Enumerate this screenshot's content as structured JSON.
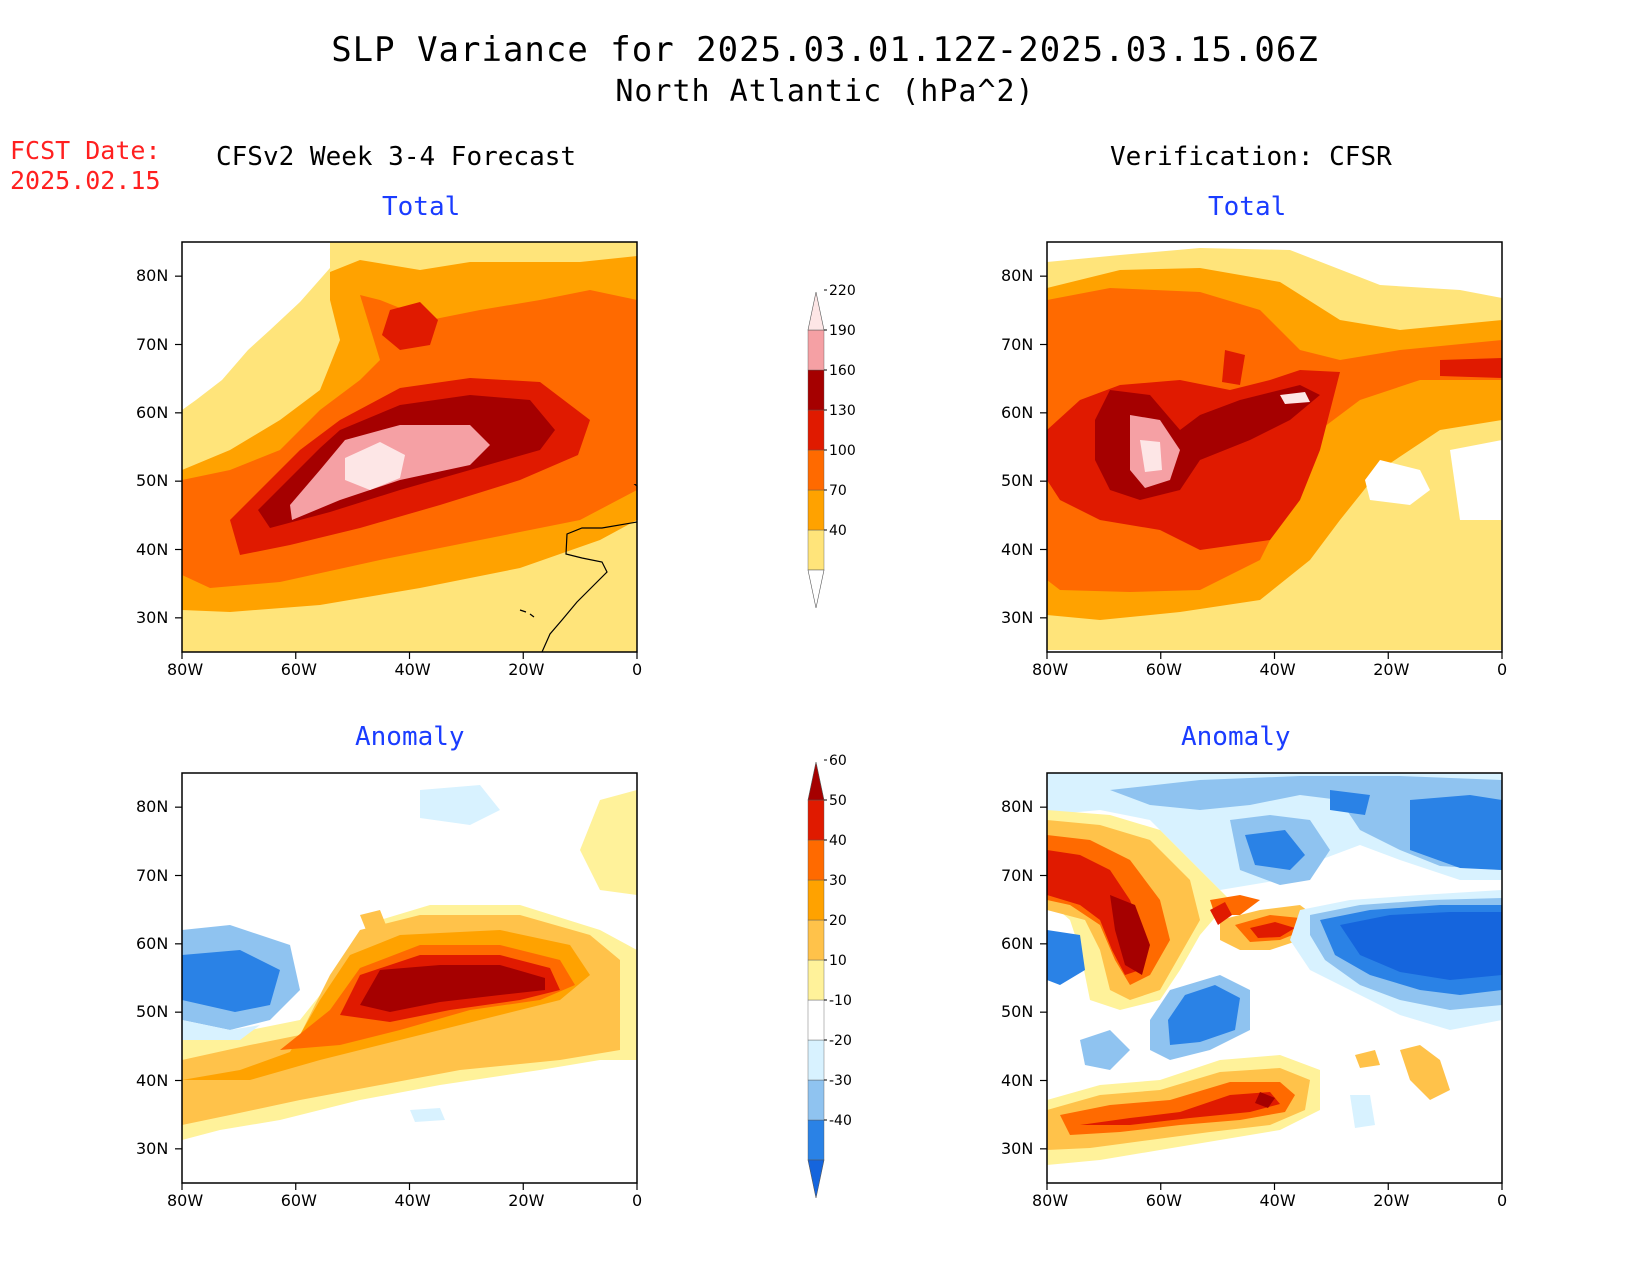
{
  "title": {
    "line1": "SLP Variance for 2025.03.01.12Z-2025.03.15.06Z",
    "line2": "North Atlantic (hPa^2)"
  },
  "forecast_date": {
    "label": "FCST Date:",
    "value": "2025.02.15"
  },
  "columns": {
    "left": "CFSv2 Week 3-4 Forecast",
    "right": "Verification: CFSR"
  },
  "panels": {
    "total": "Total",
    "anomaly": "Anomaly"
  },
  "axes": {
    "lat_labels": [
      "80N",
      "70N",
      "60N",
      "50N",
      "40N",
      "30N"
    ],
    "lon_labels": [
      "80W",
      "60W",
      "40W",
      "20W",
      "0"
    ],
    "lat_range": [
      25,
      85
    ],
    "lon_range": [
      -80,
      0
    ]
  },
  "colorbars": {
    "total": {
      "levels": [
        "40",
        "70",
        "100",
        "130",
        "160",
        "190",
        "220"
      ],
      "colors": [
        "#ffe47a",
        "#ffa200",
        "#ff6a00",
        "#e01a00",
        "#a50000",
        "#f5a0a4",
        "#fde6e6"
      ]
    },
    "anomaly": {
      "levels": [
        "-40",
        "-30",
        "-20",
        "-10",
        "10",
        "20",
        "30",
        "40",
        "50",
        "60"
      ],
      "colors": [
        "#1565dd",
        "#2a82e6",
        "#8fc3f0",
        "#d8f2ff",
        "#ffffff",
        "#fff29a",
        "#ffc24a",
        "#ffa200",
        "#ff6a00",
        "#e01a00",
        "#a50000"
      ]
    }
  },
  "colors": {
    "title_text": "#000000",
    "fcst_text": "#ff2020",
    "subtitle_text": "#1a3cff"
  }
}
